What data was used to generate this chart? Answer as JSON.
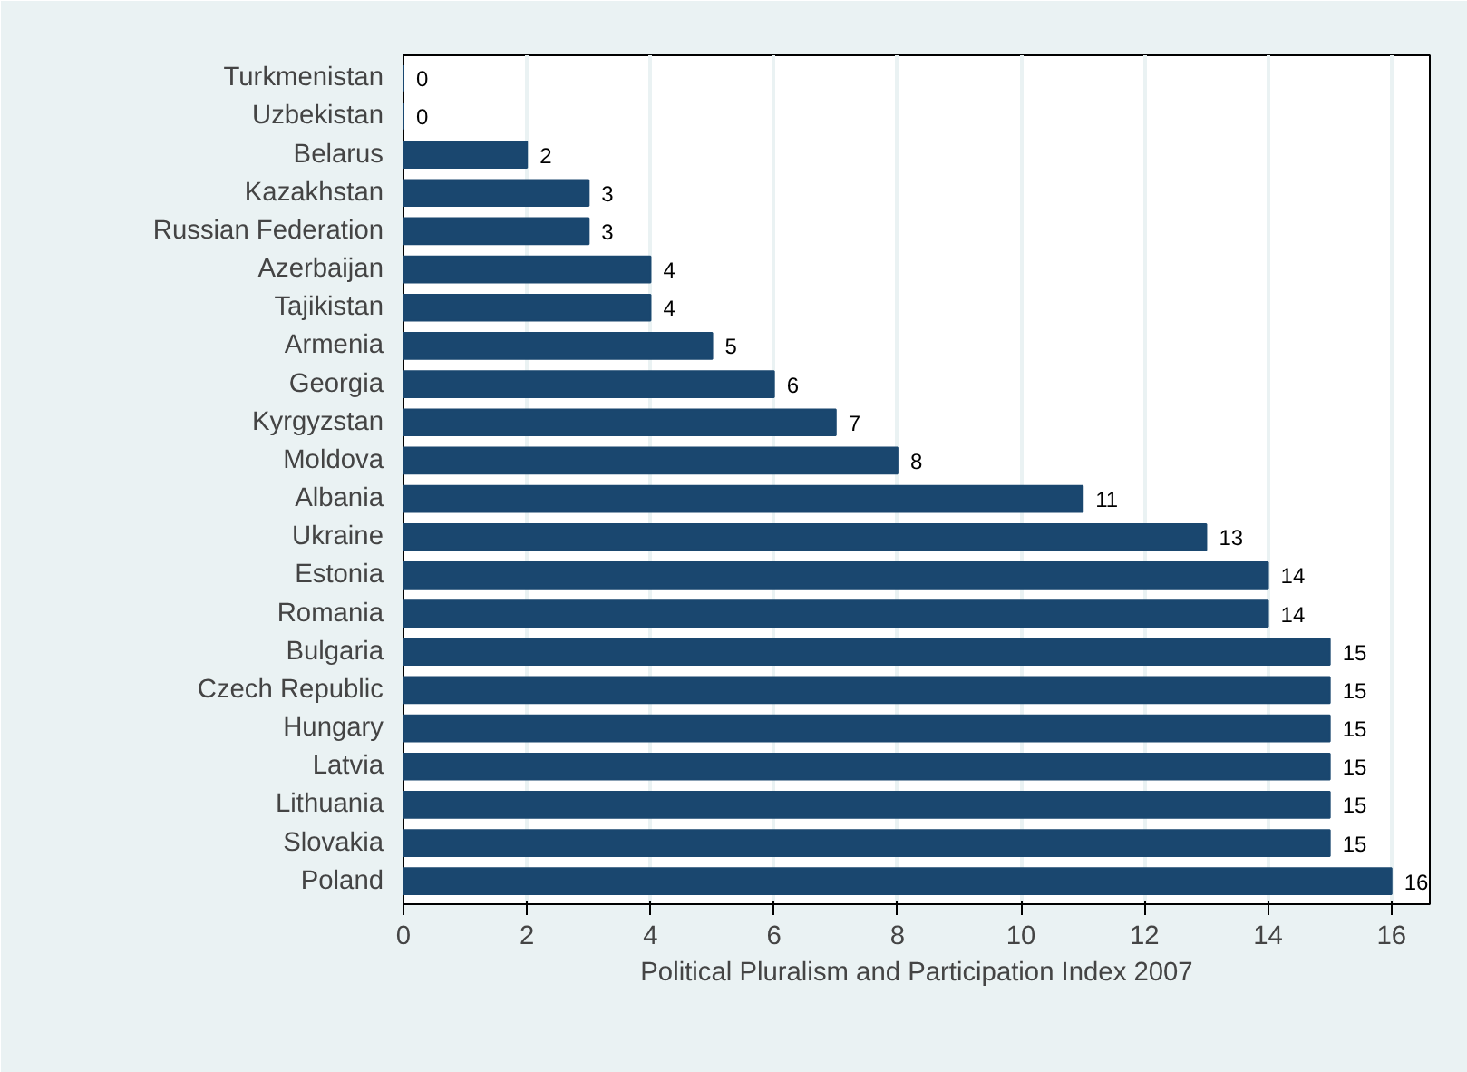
{
  "chart_data": {
    "type": "bar",
    "orientation": "horizontal",
    "xlabel": "Political Pluralism and Participation Index 2007",
    "categories": [
      "Turkmenistan",
      "Uzbekistan",
      "Belarus",
      "Kazakhstan",
      "Russian Federation",
      "Azerbaijan",
      "Tajikistan",
      "Armenia",
      "Georgia",
      "Kyrgyzstan",
      "Moldova",
      "Albania",
      "Ukraine",
      "Estonia",
      "Romania",
      "Bulgaria",
      "Czech Republic",
      "Hungary",
      "Latvia",
      "Lithuania",
      "Slovakia",
      "Poland"
    ],
    "values": [
      0,
      0,
      2,
      3,
      3,
      4,
      4,
      5,
      6,
      7,
      8,
      11,
      13,
      14,
      14,
      15,
      15,
      15,
      15,
      15,
      15,
      16
    ],
    "color": "#1a476f",
    "xlim": [
      0,
      16.62
    ],
    "xticks": [
      0,
      2,
      4,
      6,
      8,
      10,
      12,
      14,
      16
    ],
    "grid": "x",
    "data_labels": true
  }
}
